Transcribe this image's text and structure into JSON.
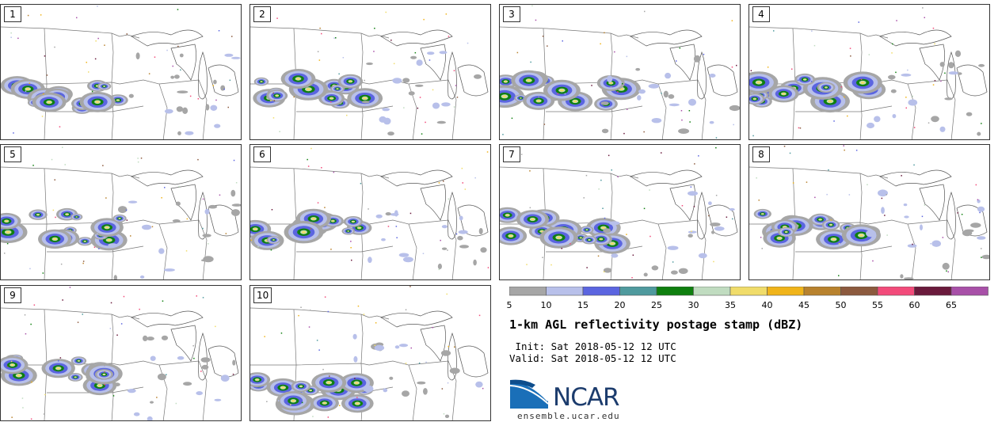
{
  "panels": [
    {
      "label": "1"
    },
    {
      "label": "2"
    },
    {
      "label": "3"
    },
    {
      "label": "4"
    },
    {
      "label": "5"
    },
    {
      "label": "6"
    },
    {
      "label": "7"
    },
    {
      "label": "8"
    },
    {
      "label": "9"
    },
    {
      "label": "10"
    }
  ],
  "colorbar": {
    "ticks": [
      "5",
      "10",
      "15",
      "20",
      "25",
      "30",
      "35",
      "40",
      "45",
      "50",
      "55",
      "60",
      "65"
    ],
    "colors": [
      "#a6a6a6",
      "#b8c0ea",
      "#5b65e0",
      "#4f9a9e",
      "#0f7f0f",
      "#c0dcc0",
      "#f0dc6a",
      "#f0b41a",
      "#b8822e",
      "#8c5a3e",
      "#f24b7a",
      "#6a1a3c",
      "#a850a8"
    ]
  },
  "title": "1-km AGL reflectivity postage stamp (dBZ)",
  "init": " Init: Sat 2018-05-12 12 UTC",
  "valid": "Valid: Sat 2018-05-12 12 UTC",
  "logo": {
    "text": "NCAR",
    "url": "ensemble.ucar.edu"
  }
}
